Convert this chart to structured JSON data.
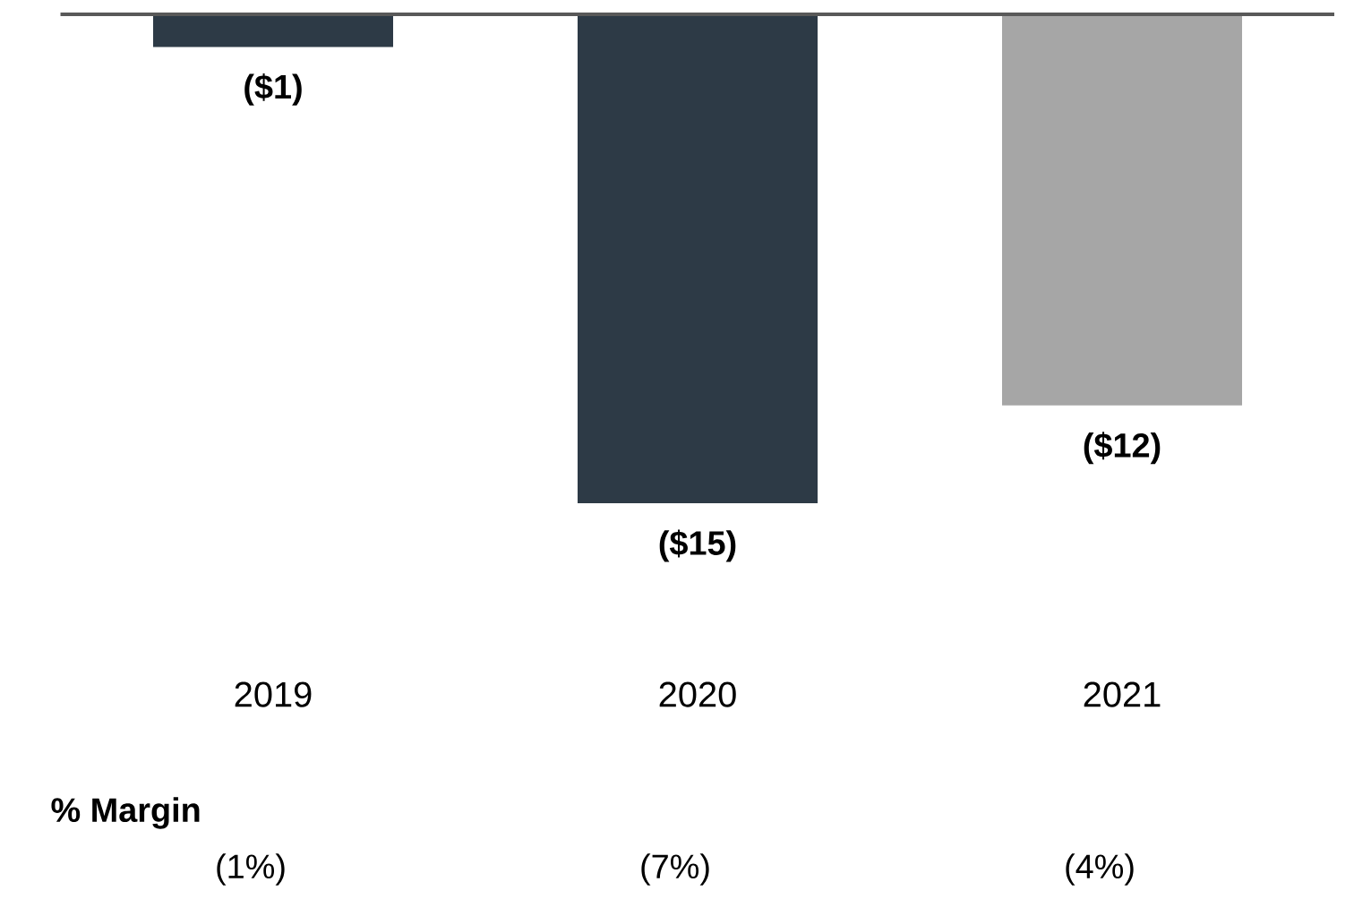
{
  "chart_data": {
    "type": "bar",
    "categories": [
      "2019",
      "2020",
      "2021"
    ],
    "values": [
      -1,
      -15,
      -12
    ],
    "colors": [
      "#2d3a46",
      "#2d3a46",
      "#a6a6a6"
    ],
    "value_labels": [
      "($1)",
      "($15)",
      "($12)"
    ],
    "annotations": [
      "**% Margin**",
      "(1%)",
      "(7%)",
      "(4%)"
    ]
  }
}
